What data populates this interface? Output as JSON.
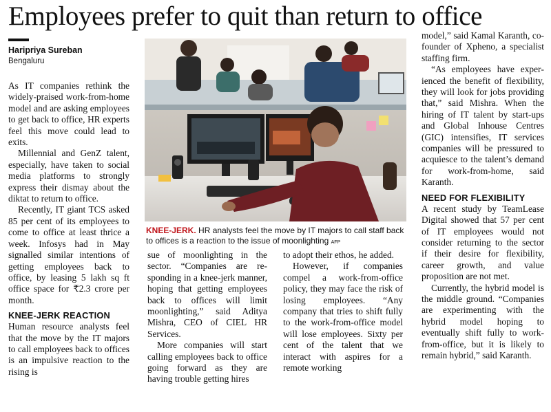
{
  "article": {
    "headline": "Employees prefer to quit than return to office",
    "byline": {
      "author": "Haripriya Sureban",
      "location": "Bengaluru"
    },
    "photo": {
      "caption_kicker": "KNEE-JERK.",
      "caption_text": " HR analysts feel the move by IT majors to call staff back to offices is a reaction to the issue of moonlighting",
      "credit": "AFP"
    },
    "col1": {
      "p1": "As IT companies rethink the widely-praised work-from-home model and are asking employees to get back to of­fice, HR experts feel this move could lead to exits.",
      "p2": "Millennial and GenZ tal­ent, especially, have taken to social media platforms to strongly express their dis­may about the diktat to re­turn to office.",
      "p3": "Recently, IT giant TCS asked 85 per cent of its em­ployees to come to office at least thrice a week. Infosys had in May signalled similar intentions of getting em­ployees back to office, by leasing 5 lakh sq ft office space for ₹2.3 crore per month.",
      "h1": "KNEE-JERK REACTION",
      "p4": "Human resource analysts feel that the move by the IT majors to call employees back to offices is an impuls­ive reaction to the rising is­"
    },
    "col2": {
      "p1": "sue of moonlighting in the sector. “Companies are re­sponding in a knee-jerk man­ner, hoping that getting em­ployees back to offices will limit moonlighting,” said Aditya Mishra, CEO of CIEL HR Services.",
      "p2": "More companies will start calling employees back to of­fice going forward as they are having trouble getting hires"
    },
    "col3": {
      "p1": "to adopt their ethos, he added.",
      "p2": "However, if companies compel a work-from-office policy, they may face the risk of losing employees. “Any company that tries to shift fully to the work-from-office model will lose employees. Sixty per cent of the talent that we interact with aspires for a remote working"
    },
    "col4": {
      "p1": "model,” said Kamal Karanth, co-founder of Xpheno, a spe­cialist staffing firm.",
      "p2": "“As employees have exper­ienced the benefit of flexibil­ity, they will look for jobs providing that,” said Mishra. When the hiring of IT talent by start-ups and Global In­house Centres (GIC) intens­ifies, IT services companies will be pressured to acqui­esce to the talent’s demand for work-from-home, said Karanth.",
      "h1": "NEED FOR FLEXIBILITY",
      "p3": "A recent study by TeamLease Digital showed that 57 per cent of IT employees would not consider returning to the sector if their desire for flex­ibility, career growth, and value proposition are not met.",
      "p4": "Currently, the hybrid model is the middle ground. “Companies are experiment­ing with the hybrid model hoping to eventually shift fully to work-from-office, but it is likely to remain hy­brid,” said Karanth."
    }
  },
  "colors": {
    "kicker_red": "#c0141a",
    "text": "#111111",
    "background": "#ffffff"
  }
}
